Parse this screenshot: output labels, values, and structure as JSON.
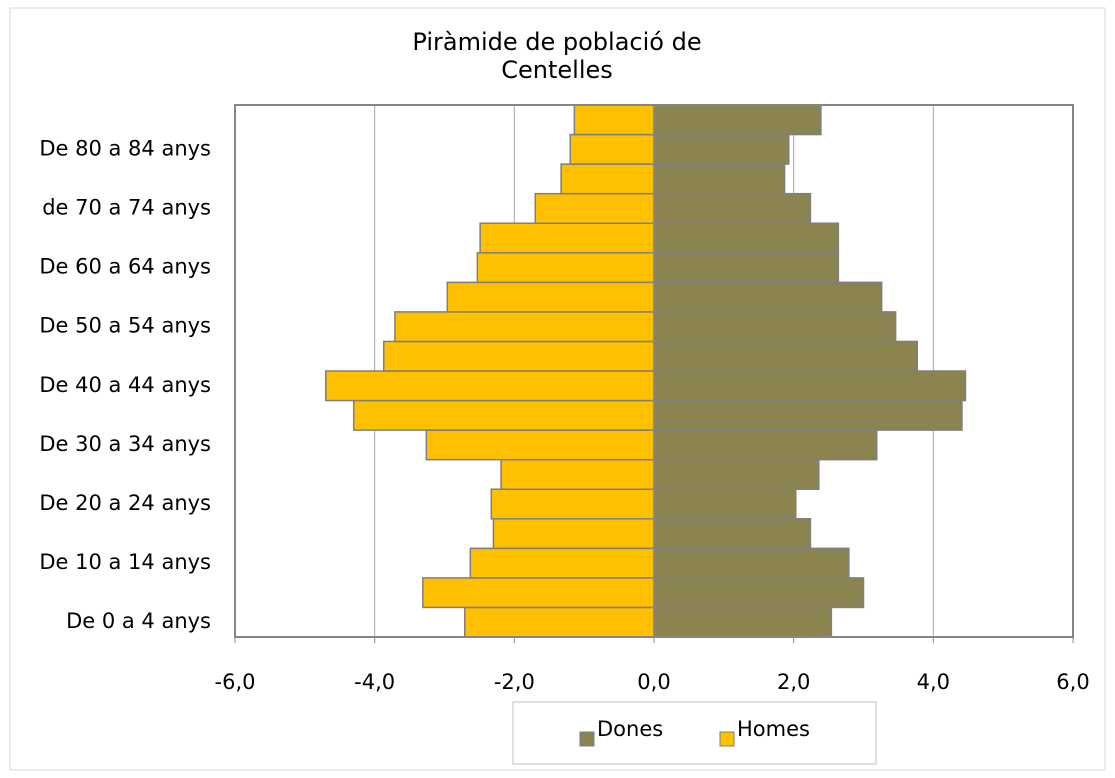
{
  "chart_data": {
    "type": "bar",
    "orientation": "horizontal",
    "stacked": true,
    "title": "Piràmide de població de Centelles",
    "categories": [
      "De 0 a 4 anys",
      null,
      "De 10 a 14 anys",
      null,
      "De 20 a 24 anys",
      null,
      "De 30 a 34 anys",
      null,
      "De 40 a 44 anys",
      null,
      "De 50 a 54 anys",
      null,
      "De 60 a 64 anys",
      null,
      "de 70 a 74 anys",
      null,
      "De 80 a 84 anys",
      null
    ],
    "series": [
      {
        "name": "Dones",
        "color": "#8b8350",
        "values": [
          2.54,
          3.0,
          2.79,
          2.24,
          2.03,
          2.36,
          3.19,
          4.41,
          4.46,
          3.77,
          3.46,
          3.26,
          2.64,
          2.64,
          2.24,
          1.87,
          1.93,
          2.39
        ]
      },
      {
        "name": "Homes",
        "color": "#ffc000",
        "values": [
          -2.71,
          -3.31,
          -2.63,
          -2.3,
          -2.33,
          -2.19,
          -3.26,
          -4.3,
          -4.7,
          -3.87,
          -3.71,
          -2.96,
          -2.53,
          -2.49,
          -1.7,
          -1.33,
          -1.2,
          -1.14
        ]
      }
    ],
    "xlim": [
      -6,
      6
    ],
    "xticks": [
      {
        "value": -6,
        "label": "-6,0"
      },
      {
        "value": -4,
        "label": "-4,0"
      },
      {
        "value": -2,
        "label": "-2,0"
      },
      {
        "value": 0,
        "label": "0,0"
      },
      {
        "value": 2,
        "label": "2,0"
      },
      {
        "value": 4,
        "label": "4,0"
      },
      {
        "value": 6,
        "label": "6,0"
      }
    ],
    "grid": true,
    "legend": "bottom"
  }
}
